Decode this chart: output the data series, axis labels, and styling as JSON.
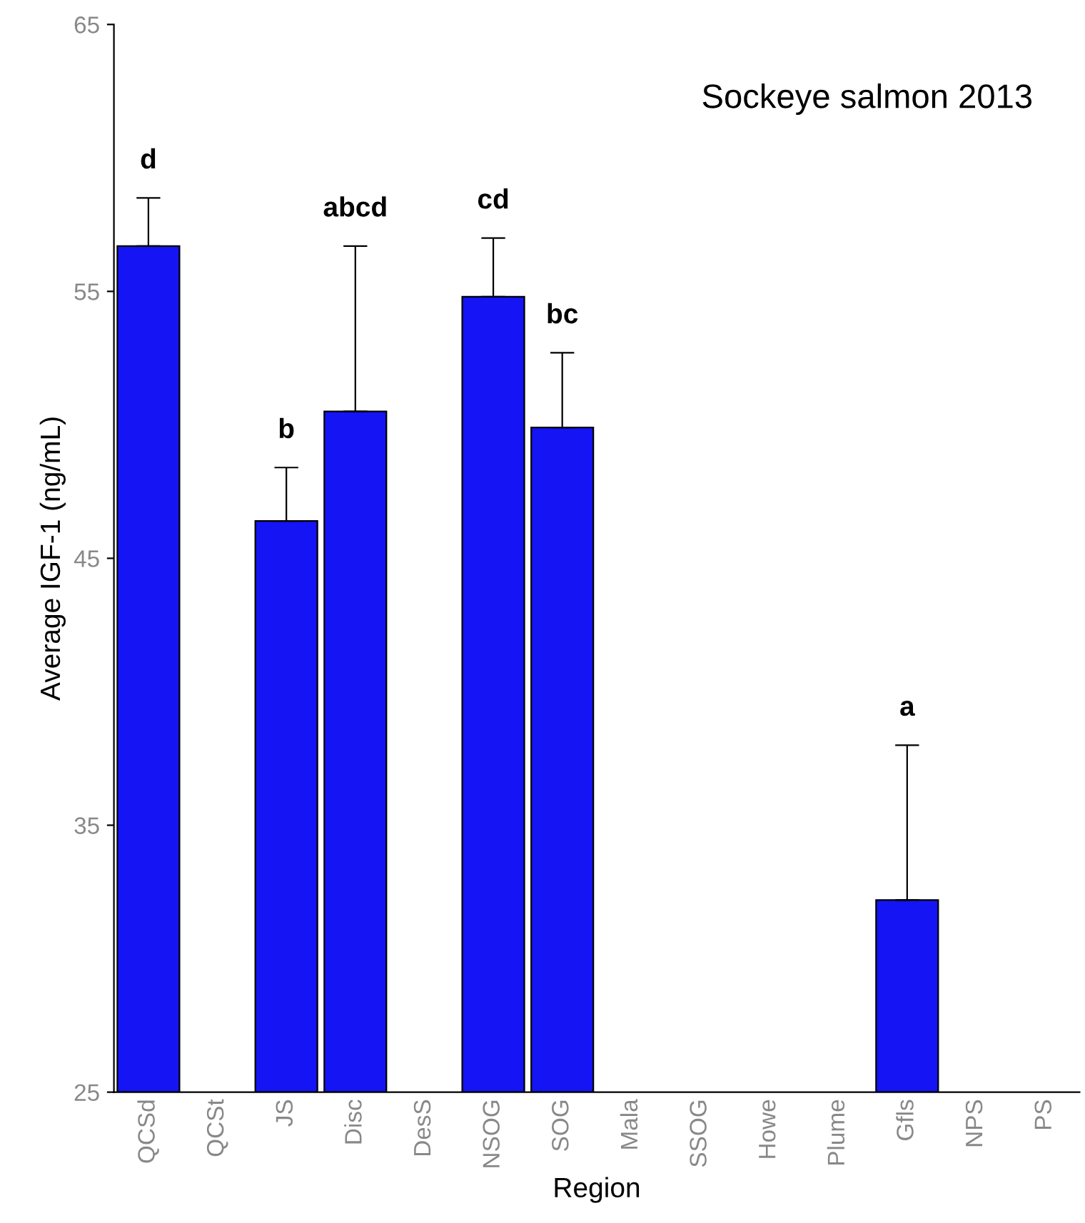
{
  "chart_data": {
    "type": "bar",
    "title": "Sockeye salmon 2013",
    "xlabel": "Region",
    "ylabel": "Average IGF-1 (ng/mL)",
    "categories": [
      "QCSd",
      "QCSt",
      "JS",
      "Disc",
      "DesS",
      "NSOG",
      "SOG",
      "Mala",
      "SSOG",
      "Howe",
      "Plume",
      "Gfls",
      "NPS",
      "PS"
    ],
    "values": [
      56.7,
      null,
      46.4,
      50.5,
      null,
      54.8,
      49.9,
      null,
      null,
      null,
      null,
      32.2,
      null,
      null
    ],
    "errors": [
      [
        56.7,
        58.5
      ],
      null,
      [
        46.4,
        48.4
      ],
      [
        50.5,
        56.7
      ],
      null,
      [
        54.8,
        57.0
      ],
      [
        49.9,
        52.7
      ],
      null,
      null,
      null,
      null,
      [
        32.2,
        38.0
      ],
      null,
      null
    ],
    "color": "#1414f5",
    "annotations": [
      "d",
      "b",
      "abcd",
      "cd",
      "bc",
      "a"
    ],
    "ylim": [
      25,
      65
    ],
    "yticks": [
      25,
      35,
      45,
      55,
      65
    ],
    "grid": false
  }
}
